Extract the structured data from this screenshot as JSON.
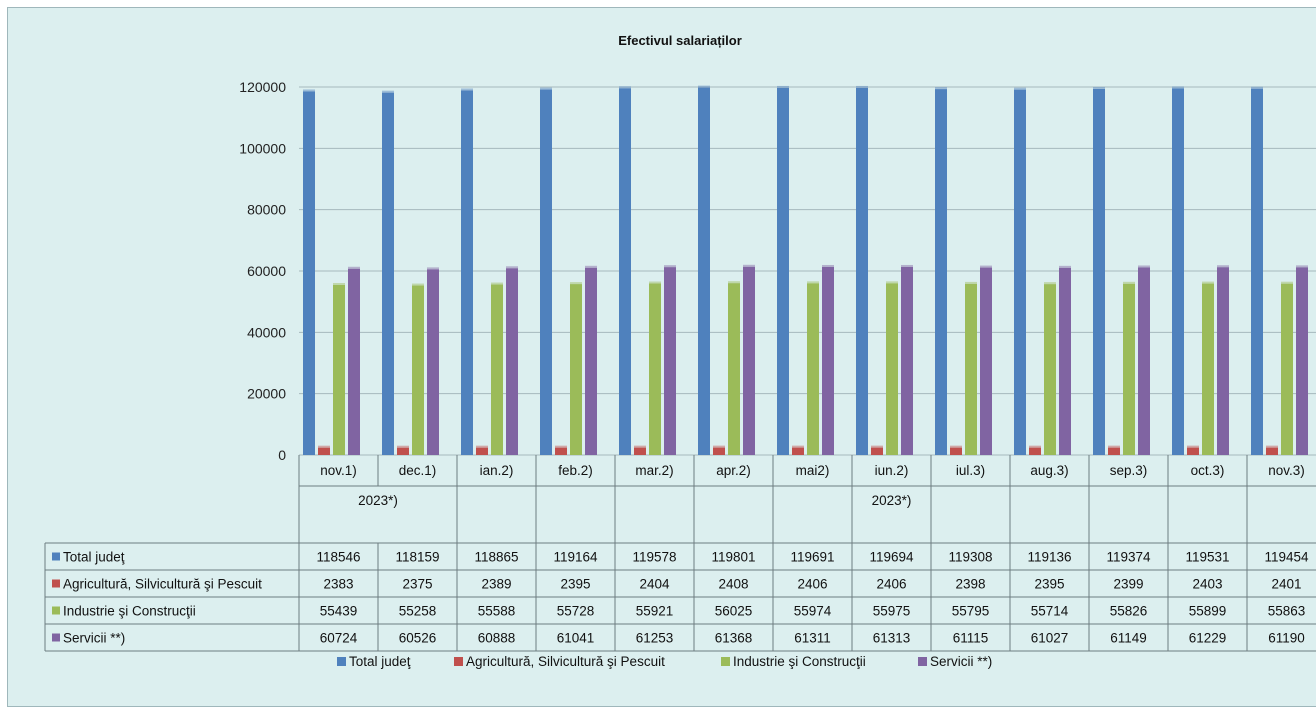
{
  "chart_data": {
    "type": "bar",
    "title": "Efectivul salariaților",
    "categories": [
      "nov.1)",
      "dec.1)",
      "ian.2)",
      "feb.2)",
      "mar.2)",
      "apr.2)",
      "mai2)",
      "iun.2)",
      "iul.3)",
      "aug.3)",
      "sep.3)",
      "oct.3)",
      "nov.3)"
    ],
    "category_groups": [
      {
        "label": "2023*)",
        "span": 2
      },
      {
        "label": "2023*)",
        "span": 11
      }
    ],
    "ylim": [
      0,
      120000
    ],
    "yticks": [
      0,
      20000,
      40000,
      60000,
      80000,
      100000,
      120000
    ],
    "grid": true,
    "legend_position": "bottom",
    "series": [
      {
        "name": "Total judeţ",
        "color": "#4f81bd",
        "values": [
          118546,
          118159,
          118865,
          119164,
          119578,
          119801,
          119691,
          119694,
          119308,
          119136,
          119374,
          119531,
          119454
        ]
      },
      {
        "name": "Agricultură, Silvicultură şi Pescuit",
        "color": "#c0504d",
        "values": [
          2383,
          2375,
          2389,
          2395,
          2404,
          2408,
          2406,
          2406,
          2398,
          2395,
          2399,
          2403,
          2401
        ]
      },
      {
        "name": "Industrie şi Construcţii",
        "color": "#9bbb59",
        "values": [
          55439,
          55258,
          55588,
          55728,
          55921,
          56025,
          55974,
          55975,
          55795,
          55714,
          55826,
          55899,
          55863
        ]
      },
      {
        "name": "Servicii **)",
        "color": "#8064a2",
        "values": [
          60724,
          60526,
          60888,
          61041,
          61253,
          61368,
          61311,
          61313,
          61115,
          61027,
          61149,
          61229,
          61190
        ]
      }
    ]
  }
}
